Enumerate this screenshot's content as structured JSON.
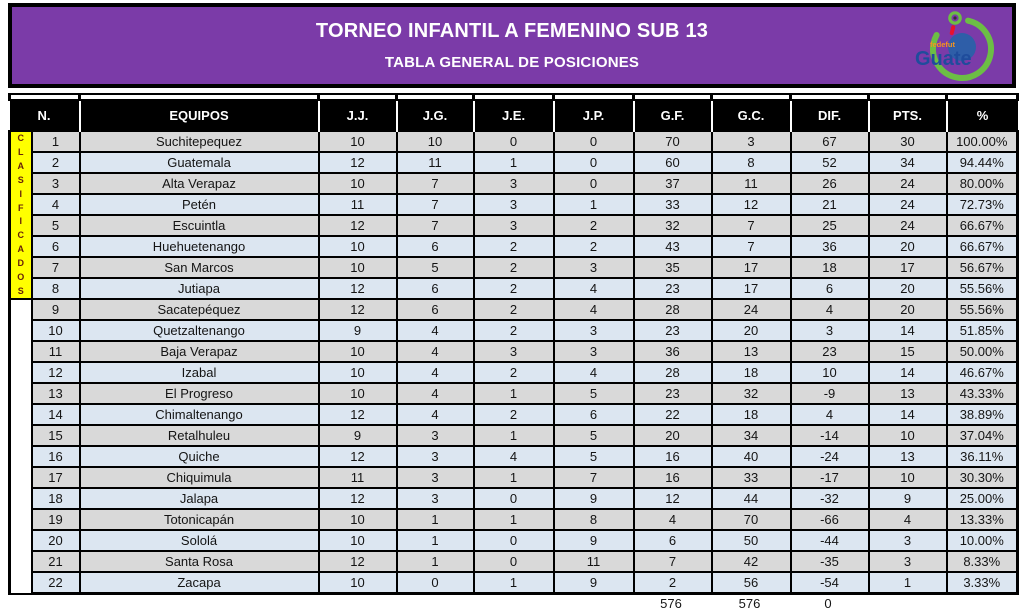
{
  "header": {
    "title": "TORNEO INFANTIL A FEMENINO SUB 13",
    "subtitle": "TABLA GENERAL DE POSICIONES",
    "background_color": "#7B3BA8",
    "logo": {
      "small_text": "fedefut",
      "main_text": "Guate"
    }
  },
  "classified_label": "CLASIFICADOS",
  "classified_row_count": 8,
  "colors": {
    "banner_purple": "#7B3BA8",
    "header_row_bg": "#000000",
    "row_gray": "#D9D9D9",
    "row_blue": "#DCE6F1",
    "classified_yellow": "#FFFF00",
    "classified_letters": "#66210A",
    "logo_green": "#6CBE45",
    "logo_blue": "#2E5EA8",
    "logo_red": "#E8112D",
    "logo_orange": "#F7941D"
  },
  "table": {
    "columns": [
      "N.",
      "EQUIPOS",
      "J.J.",
      "J.G.",
      "J.E.",
      "J.P.",
      "G.F.",
      "G.C.",
      "DIF.",
      "PTS.",
      "%"
    ],
    "rows": [
      [
        1,
        "Suchitepequez",
        10,
        10,
        0,
        0,
        70,
        3,
        67,
        30,
        "100.00%"
      ],
      [
        2,
        "Guatemala",
        12,
        11,
        1,
        0,
        60,
        8,
        52,
        34,
        "94.44%"
      ],
      [
        3,
        "Alta Verapaz",
        10,
        7,
        3,
        0,
        37,
        11,
        26,
        24,
        "80.00%"
      ],
      [
        4,
        "Petén",
        11,
        7,
        3,
        1,
        33,
        12,
        21,
        24,
        "72.73%"
      ],
      [
        5,
        "Escuintla",
        12,
        7,
        3,
        2,
        32,
        7,
        25,
        24,
        "66.67%"
      ],
      [
        6,
        "Huehuetenango",
        10,
        6,
        2,
        2,
        43,
        7,
        36,
        20,
        "66.67%"
      ],
      [
        7,
        "San Marcos",
        10,
        5,
        2,
        3,
        35,
        17,
        18,
        17,
        "56.67%"
      ],
      [
        8,
        "Jutiapa",
        12,
        6,
        2,
        4,
        23,
        17,
        6,
        20,
        "55.56%"
      ],
      [
        9,
        "Sacatepéquez",
        12,
        6,
        2,
        4,
        28,
        24,
        4,
        20,
        "55.56%"
      ],
      [
        10,
        "Quetzaltenango",
        9,
        4,
        2,
        3,
        23,
        20,
        3,
        14,
        "51.85%"
      ],
      [
        11,
        "Baja Verapaz",
        10,
        4,
        3,
        3,
        36,
        13,
        23,
        15,
        "50.00%"
      ],
      [
        12,
        "Izabal",
        10,
        4,
        2,
        4,
        28,
        18,
        10,
        14,
        "46.67%"
      ],
      [
        13,
        "El Progreso",
        10,
        4,
        1,
        5,
        23,
        32,
        -9,
        13,
        "43.33%"
      ],
      [
        14,
        "Chimaltenango",
        12,
        4,
        2,
        6,
        22,
        18,
        4,
        14,
        "38.89%"
      ],
      [
        15,
        "Retalhuleu",
        9,
        3,
        1,
        5,
        20,
        34,
        -14,
        10,
        "37.04%"
      ],
      [
        16,
        "Quiche",
        12,
        3,
        4,
        5,
        16,
        40,
        -24,
        13,
        "36.11%"
      ],
      [
        17,
        "Chiquimula",
        11,
        3,
        1,
        7,
        16,
        33,
        -17,
        10,
        "30.30%"
      ],
      [
        18,
        "Jalapa",
        12,
        3,
        0,
        9,
        12,
        44,
        -32,
        9,
        "25.00%"
      ],
      [
        19,
        "Totonicapán",
        10,
        1,
        1,
        8,
        4,
        70,
        -66,
        4,
        "13.33%"
      ],
      [
        20,
        "Sololá",
        10,
        1,
        0,
        9,
        6,
        50,
        -44,
        3,
        "10.00%"
      ],
      [
        21,
        "Santa Rosa",
        12,
        1,
        0,
        11,
        7,
        42,
        -35,
        3,
        "8.33%"
      ],
      [
        22,
        "Zacapa",
        10,
        0,
        1,
        9,
        2,
        56,
        -54,
        1,
        "3.33%"
      ]
    ]
  },
  "totals": {
    "gf": "576",
    "gc": "576",
    "dif": "0"
  }
}
